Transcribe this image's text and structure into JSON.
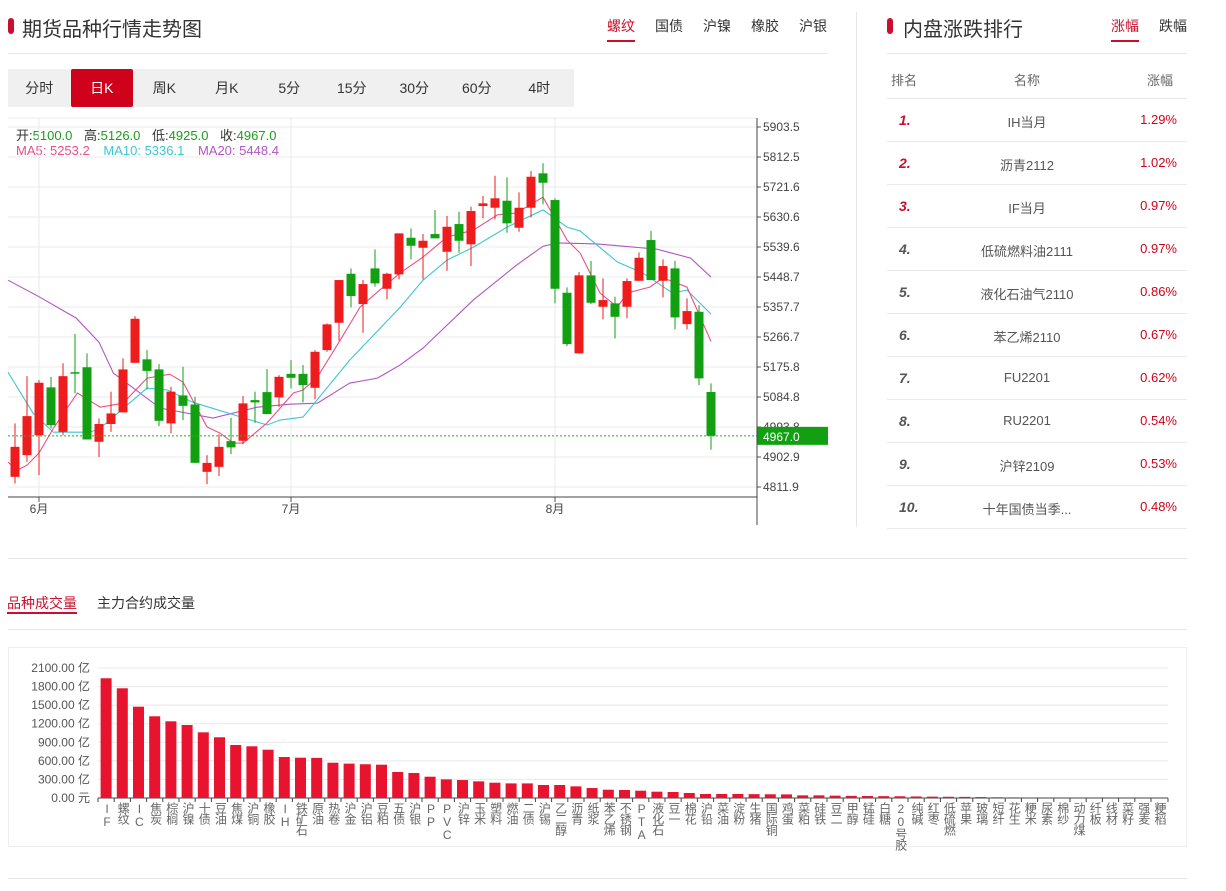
{
  "left": {
    "title": "期货品种行情走势图",
    "commodity_tabs": [
      {
        "label": "螺纹",
        "active": true
      },
      {
        "label": "国债",
        "active": false
      },
      {
        "label": "沪镍",
        "active": false
      },
      {
        "label": "橡胶",
        "active": false
      },
      {
        "label": "沪银",
        "active": false
      }
    ],
    "period_tabs": [
      {
        "label": "分时",
        "active": false
      },
      {
        "label": "日K",
        "active": true
      },
      {
        "label": "周K",
        "active": false
      },
      {
        "label": "月K",
        "active": false
      },
      {
        "label": "5分",
        "active": false
      },
      {
        "label": "15分",
        "active": false
      },
      {
        "label": "30分",
        "active": false
      },
      {
        "label": "60分",
        "active": false
      },
      {
        "label": "4时",
        "active": false
      }
    ],
    "ohlc_legend": {
      "open_label": "开:",
      "open": "5100.0",
      "high_label": "高:",
      "high": "5126.0",
      "low_label": "低:",
      "low": "4925.0",
      "close_label": "收:",
      "close": "4967.0"
    },
    "ma_legend": {
      "ma5_label": "MA5:",
      "ma5": "5253.2",
      "ma10_label": "MA10:",
      "ma10": "5336.1",
      "ma20_label": "MA20:",
      "ma20": "5448.4"
    }
  },
  "right": {
    "title": "内盘涨跌排行",
    "tabs": [
      {
        "label": "涨幅",
        "active": true
      },
      {
        "label": "跌幅",
        "active": false
      }
    ],
    "headers": {
      "rank": "排名",
      "name": "名称",
      "change": "涨幅"
    },
    "rows": [
      {
        "rank": "1.",
        "name": "IH当月",
        "change": "1.29%"
      },
      {
        "rank": "2.",
        "name": "沥青2112",
        "change": "1.02%"
      },
      {
        "rank": "3.",
        "name": "IF当月",
        "change": "0.97%"
      },
      {
        "rank": "4.",
        "name": "低硫燃料油2111",
        "change": "0.97%"
      },
      {
        "rank": "5.",
        "name": "液化石油气2110",
        "change": "0.86%"
      },
      {
        "rank": "6.",
        "name": "苯乙烯2110",
        "change": "0.67%"
      },
      {
        "rank": "7.",
        "name": "FU2201",
        "change": "0.62%"
      },
      {
        "rank": "8.",
        "name": "RU2201",
        "change": "0.54%"
      },
      {
        "rank": "9.",
        "name": "沪锌2109",
        "change": "0.53%"
      },
      {
        "rank": "10.",
        "name": "十年国债当季...",
        "change": "0.48%"
      }
    ]
  },
  "volume": {
    "tabs": [
      {
        "label": "品种成交量",
        "active": true
      },
      {
        "label": "主力合约成交量",
        "active": false
      }
    ]
  },
  "colors": {
    "accent": "#c8102e",
    "up": "#ee1c1c",
    "down": "#12a012",
    "ma5": "#e8508a",
    "ma10": "#3ec6d2",
    "ma20": "#b255c4",
    "bar": "#e8132e"
  },
  "chart_data": [
    {
      "type": "candlestick",
      "title": "螺纹 日K",
      "y_ticks": [
        "5903.5",
        "5812.5",
        "5721.6",
        "5630.6",
        "5539.6",
        "5448.7",
        "5357.7",
        "5266.7",
        "5175.8",
        "5084.8",
        "4993.8",
        "4902.9",
        "4811.9"
      ],
      "ylim": [
        4811.9,
        5903.5
      ],
      "month_labels": [
        {
          "index": 2,
          "label": "6月"
        },
        {
          "index": 23,
          "label": "7月"
        },
        {
          "index": 45,
          "label": "8月"
        }
      ],
      "last_price": "4967.0",
      "ohlc": [
        [
          4842.8,
          5004.7,
          4822.7,
          4933.7
        ],
        [
          4908.5,
          5148,
          4888,
          5026.8
        ],
        [
          4969,
          5136,
          4848,
          5128
        ],
        [
          5114,
          5146,
          4989.5,
          4999.5
        ],
        [
          4979,
          5187,
          4969,
          5148
        ],
        [
          5160,
          5276,
          5096,
          5158
        ],
        [
          5175,
          5217,
          4956,
          4956
        ],
        [
          4949,
          5020,
          4903,
          5003
        ],
        [
          5003,
          5101,
          4979,
          5035
        ],
        [
          5038,
          5202,
          5038,
          5168.5
        ],
        [
          5188.5,
          5330,
          5188.5,
          5322
        ],
        [
          5199,
          5227,
          5108,
          5164
        ],
        [
          5168.5,
          5184.6,
          4996.5,
          5012.6
        ],
        [
          5004.7,
          5115.7,
          4974.4,
          5101
        ],
        [
          5089.6,
          5176.4,
          5014.7,
          5058
        ],
        [
          5062.3,
          5085.4,
          4885.2,
          4885.2
        ],
        [
          4857.9,
          4908.5,
          4820.6,
          4885
        ],
        [
          4873,
          4972,
          4844.8,
          4933.7
        ],
        [
          4951,
          5021.7,
          4911.6,
          4932
        ],
        [
          4952,
          5087.5,
          4942,
          5065.4
        ],
        [
          5075.4,
          5101,
          5006.5,
          5068.4
        ],
        [
          5099.6,
          5169.4,
          5033,
          5033
        ],
        [
          5083.6,
          5151,
          5055,
          5146
        ],
        [
          5155,
          5196.7,
          5110.9,
          5143
        ],
        [
          5155,
          5181.5,
          5068.4,
          5120.9
        ],
        [
          5112.7,
          5227,
          5077.5,
          5221.9
        ],
        [
          5227,
          5308,
          5222,
          5305
        ],
        [
          5309.9,
          5439.4,
          5255.3,
          5439.4
        ],
        [
          5458.5,
          5474.8,
          5356.6,
          5390.8
        ],
        [
          5366.6,
          5439.4,
          5279.5,
          5427.2
        ],
        [
          5474.8,
          5532.5,
          5419,
          5429.3
        ],
        [
          5413,
          5461.5,
          5380.8,
          5458.5
        ],
        [
          5456.6,
          5581,
          5441.5,
          5581
        ],
        [
          5567.7,
          5596.2,
          5502.2,
          5543.4
        ],
        [
          5537.3,
          5578.9,
          5441.5,
          5558.6
        ],
        [
          5578.9,
          5651.7,
          5565.9,
          5565.9
        ],
        [
          5525.2,
          5633.5,
          5467.6,
          5601
        ],
        [
          5609.2,
          5646.5,
          5522.2,
          5558.6
        ],
        [
          5547.7,
          5661.7,
          5481.8,
          5648.7
        ],
        [
          5663.8,
          5694.2,
          5626.5,
          5672
        ],
        [
          5658.7,
          5755.7,
          5623.5,
          5687.2
        ],
        [
          5679.9,
          5750.9,
          5582.9,
          5611.4
        ],
        [
          5598,
          5705.4,
          5585.9,
          5658.7
        ],
        [
          5658.7,
          5770,
          5629.6,
          5752.7
        ],
        [
          5763,
          5793.4,
          5669,
          5734.5
        ],
        [
          5682,
          5687.2,
          5368.7,
          5413
        ],
        [
          5400.9,
          5417.2,
          5239.2,
          5245.2
        ],
        [
          5217,
          5463.6,
          5217,
          5453.6
        ],
        [
          5453.6,
          5497,
          5366.6,
          5370.5
        ],
        [
          5358.4,
          5444.5,
          5320.2,
          5378.7
        ],
        [
          5368.7,
          5388.7,
          5262.5,
          5328
        ],
        [
          5358.4,
          5444.5,
          5323.2,
          5436.3
        ],
        [
          5437.2,
          5523.4,
          5437.2,
          5507
        ],
        [
          5560.7,
          5588.9,
          5439.4,
          5439.4
        ],
        [
          5437.2,
          5502.2,
          5386.9,
          5481.8
        ],
        [
          5474.8,
          5497.9,
          5289.8,
          5326.2
        ],
        [
          5305.9,
          5383.9,
          5289.8,
          5345.3
        ],
        [
          5343.2,
          5363.5,
          5120.9,
          5141.2
        ],
        [
          5100,
          5126,
          4925,
          4967
        ]
      ],
      "ma": {
        "MA5": [
          [
            -0.7,
            4887
          ],
          [
            0.2,
            4863
          ],
          [
            1,
            4878
          ],
          [
            2,
            4915
          ],
          [
            3.2,
            4990
          ],
          [
            5.2,
            5097
          ],
          [
            7.1,
            5054
          ],
          [
            9,
            5066
          ],
          [
            11,
            5142
          ],
          [
            12.9,
            5154
          ],
          [
            14,
            5130
          ],
          [
            16,
            4994
          ],
          [
            17.1,
            4975
          ],
          [
            18.2,
            4945
          ],
          [
            19,
            4945
          ],
          [
            21,
            5006
          ],
          [
            23.2,
            5097
          ],
          [
            24,
            5106
          ],
          [
            25.2,
            5145
          ],
          [
            27.1,
            5257
          ],
          [
            28.75,
            5357
          ],
          [
            30.2,
            5403
          ],
          [
            32.1,
            5461
          ],
          [
            34,
            5509
          ],
          [
            36,
            5570
          ],
          [
            38.2,
            5591
          ],
          [
            40.2,
            5637
          ],
          [
            41.8,
            5643
          ],
          [
            44,
            5691
          ],
          [
            46,
            5561
          ],
          [
            47.1,
            5521
          ],
          [
            48.75,
            5400
          ],
          [
            50.2,
            5357
          ],
          [
            51,
            5400
          ],
          [
            52.9,
            5418
          ],
          [
            54,
            5446
          ],
          [
            56,
            5418
          ],
          [
            58,
            5253.2
          ]
        ],
        "MA10": [
          [
            -0.6,
            5160
          ],
          [
            1.5,
            5036
          ],
          [
            3.2,
            4978
          ],
          [
            6.25,
            4978
          ],
          [
            7.1,
            4990
          ],
          [
            11,
            5112
          ],
          [
            12.7,
            5106
          ],
          [
            14.8,
            5069
          ],
          [
            21,
            5000
          ],
          [
            22.1,
            5015
          ],
          [
            24,
            5024
          ],
          [
            27.9,
            5197
          ],
          [
            32.1,
            5357
          ],
          [
            34,
            5439
          ],
          [
            36,
            5500
          ],
          [
            38.2,
            5539
          ],
          [
            41,
            5600
          ],
          [
            44,
            5652
          ],
          [
            46,
            5600
          ],
          [
            47.1,
            5588
          ],
          [
            50.2,
            5494
          ],
          [
            52.3,
            5461
          ],
          [
            54.8,
            5400
          ],
          [
            56,
            5409
          ],
          [
            58,
            5336.1
          ]
        ],
        "MA20": [
          [
            -0.6,
            5439
          ],
          [
            2,
            5389
          ],
          [
            5.1,
            5324
          ],
          [
            7,
            5251
          ],
          [
            8.2,
            5157
          ],
          [
            12.1,
            5051
          ],
          [
            16.5,
            5021
          ],
          [
            20.2,
            5054
          ],
          [
            22.9,
            5063
          ],
          [
            25.2,
            5066
          ],
          [
            27.9,
            5127
          ],
          [
            30.2,
            5142
          ],
          [
            32.1,
            5182
          ],
          [
            34,
            5233
          ],
          [
            38.2,
            5379
          ],
          [
            41.8,
            5485
          ],
          [
            44,
            5542
          ],
          [
            45.2,
            5552
          ],
          [
            48.5,
            5549
          ],
          [
            53.5,
            5533
          ],
          [
            56.3,
            5506
          ],
          [
            58,
            5448.4
          ]
        ]
      }
    },
    {
      "type": "bar",
      "title": "品种成交量",
      "y_ticks": [
        "2100.00 亿",
        "1800.00 亿",
        "1500.00 亿",
        "1200.00 亿",
        "900.00 亿",
        "600.00 亿",
        "300.00 亿",
        "0.00 元"
      ],
      "ylim": [
        0,
        2100
      ],
      "unit": "亿",
      "categories": [
        "IF",
        "螺纹",
        "IC",
        "焦炭",
        "棕榈",
        "沪镍",
        "十债",
        "豆油",
        "焦煤",
        "沪铜",
        "橡胶",
        "IH",
        "铁矿石",
        "原油",
        "热卷",
        "沪金",
        "沪铝",
        "豆粕",
        "五债",
        "沪银",
        "PP",
        "PVC",
        "沪锌",
        "玉米",
        "塑料",
        "燃油",
        "二债",
        "沪锡",
        "乙二醇",
        "沥青",
        "纸浆",
        "苯乙烯",
        "不锈钢",
        "PTA",
        "液化石",
        "豆一",
        "棉花",
        "沪铅",
        "菜油",
        "淀粉",
        "生猪",
        "国际铜",
        "鸡蛋",
        "菜粕",
        "硅铁",
        "豆二",
        "甲醇",
        "锰硅",
        "白糖",
        "20号胶",
        "纯碱",
        "红枣",
        "低硫燃",
        "苹果",
        "玻璃",
        "短纤",
        "花生",
        "粳米",
        "尿素",
        "棉纱",
        "动力煤",
        "纤板",
        "线材",
        "菜籽",
        "强麦",
        "粳稻"
      ],
      "values": [
        1934,
        1772,
        1475,
        1320,
        1239,
        1179,
        1061,
        981,
        856,
        835,
        780,
        662,
        651,
        648,
        570,
        555,
        545,
        538,
        420,
        404,
        344,
        301,
        290,
        269,
        247,
        236,
        236,
        210,
        210,
        188,
        161,
        134,
        129,
        118,
        102,
        97,
        81,
        65,
        65,
        65,
        62,
        60,
        58,
        43,
        43,
        38,
        35,
        32,
        30,
        28,
        25,
        22,
        20,
        18,
        15,
        12,
        10,
        5,
        2,
        1,
        1,
        0.5,
        0.3,
        0.2,
        0.1,
        0.1
      ]
    }
  ]
}
